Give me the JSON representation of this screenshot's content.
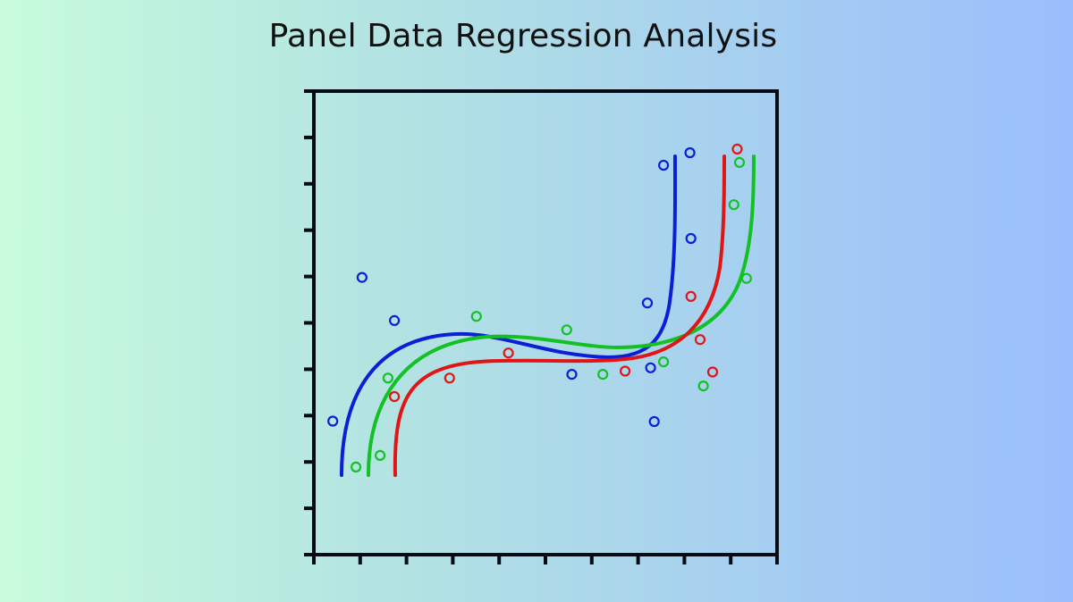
{
  "chart_data": {
    "type": "scatter",
    "title": "Panel Data Regression Analysis",
    "xlabel": "",
    "ylabel": "",
    "x_ticks": 11,
    "y_ticks": 11,
    "xlim": [
      0,
      10
    ],
    "ylim": [
      0,
      10
    ],
    "grid": false,
    "legend": null,
    "series": [
      {
        "name": "blue",
        "color": "#0a1fd6",
        "points": [
          [
            1.04,
            5.98
          ],
          [
            1.74,
            5.05
          ],
          [
            0.41,
            2.88
          ],
          [
            5.57,
            3.89
          ],
          [
            7.27,
            4.03
          ],
          [
            7.35,
            2.87
          ],
          [
            7.55,
            8.4
          ],
          [
            8.12,
            8.67
          ],
          [
            8.14,
            6.82
          ],
          [
            7.2,
            5.43
          ]
        ],
        "fit_curve": "cubic-like S-curve from (0.6,1.7) to (7.8,8.7)"
      },
      {
        "name": "red",
        "color": "#e01515",
        "points": [
          [
            1.74,
            3.41
          ],
          [
            2.93,
            3.81
          ],
          [
            4.2,
            4.35
          ],
          [
            6.72,
            3.96
          ],
          [
            8.14,
            5.57
          ],
          [
            8.34,
            4.64
          ],
          [
            8.61,
            3.94
          ],
          [
            9.14,
            8.75
          ]
        ],
        "fit_curve": "cubic-like S-curve from (1.76,1.7) to (8.86,8.7)"
      },
      {
        "name": "green",
        "color": "#12c224",
        "points": [
          [
            1.6,
            3.81
          ],
          [
            1.43,
            2.14
          ],
          [
            0.91,
            1.89
          ],
          [
            3.51,
            5.14
          ],
          [
            5.46,
            4.85
          ],
          [
            6.24,
            3.89
          ],
          [
            7.55,
            4.16
          ],
          [
            8.41,
            3.64
          ],
          [
            9.19,
            8.46
          ],
          [
            9.07,
            7.55
          ],
          [
            9.34,
            5.96
          ]
        ],
        "fit_curve": "cubic-like S-curve from (1.18,1.7) to (9.50,8.7)"
      }
    ]
  },
  "header": {
    "title": "Panel Data Regression Analysis"
  }
}
